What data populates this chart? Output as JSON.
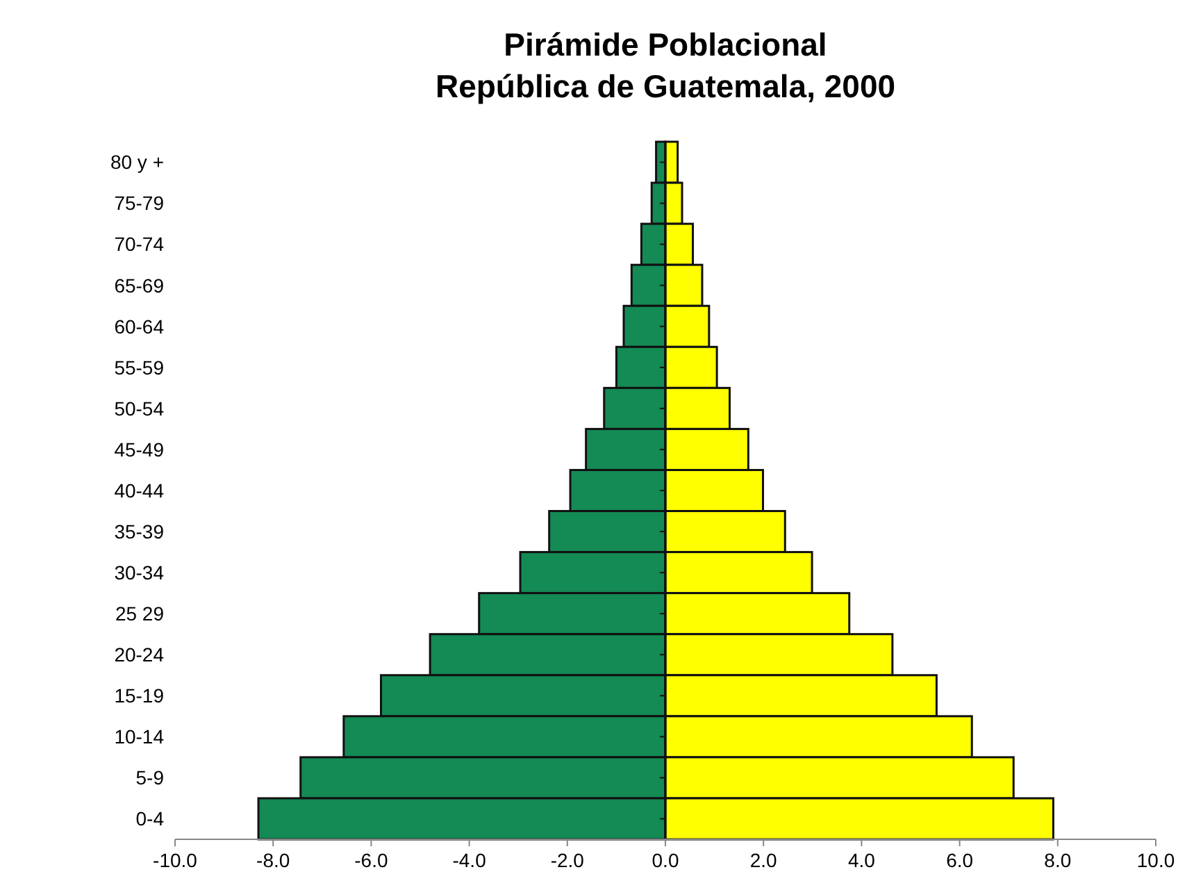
{
  "chart_data": {
    "type": "bar",
    "orientation": "horizontal",
    "title": "Pirámide Poblacional\nRepública de Guatemala, 2000",
    "categories": [
      "80 y +",
      "75-79",
      "70-74",
      "65-69",
      "60-64",
      "55-59",
      "50-54",
      "45-49",
      "40-44",
      "35-39",
      "30-34",
      "25 29",
      "20-24",
      "15-19",
      "10-14",
      "5-9",
      "0-4"
    ],
    "series": [
      {
        "color": "#148a55",
        "values": [
          -0.19,
          -0.28,
          -0.49,
          -0.69,
          -0.85,
          -1.0,
          -1.25,
          -1.62,
          -1.94,
          -2.37,
          -2.96,
          -3.8,
          -4.8,
          -5.8,
          -6.56,
          -7.44,
          -8.3
        ]
      },
      {
        "color": "#ffff00",
        "values": [
          0.25,
          0.34,
          0.56,
          0.75,
          0.89,
          1.05,
          1.31,
          1.69,
          1.99,
          2.44,
          2.99,
          3.75,
          4.63,
          5.53,
          6.25,
          7.1,
          7.91
        ]
      }
    ],
    "xlim": [
      -10,
      10
    ],
    "xticks": [
      {
        "value": -10,
        "label": "-10.0"
      },
      {
        "value": -8,
        "label": "-8.0"
      },
      {
        "value": -6,
        "label": "-6.0"
      },
      {
        "value": -4,
        "label": "-4.0"
      },
      {
        "value": -2,
        "label": "-2.0"
      },
      {
        "value": 0,
        "label": "0.0"
      },
      {
        "value": 2,
        "label": "2.0"
      },
      {
        "value": 4,
        "label": "4.0"
      },
      {
        "value": 6,
        "label": "6.0"
      },
      {
        "value": 8,
        "label": "8.0"
      },
      {
        "value": 10,
        "label": "10.0"
      }
    ],
    "stacked": true
  }
}
